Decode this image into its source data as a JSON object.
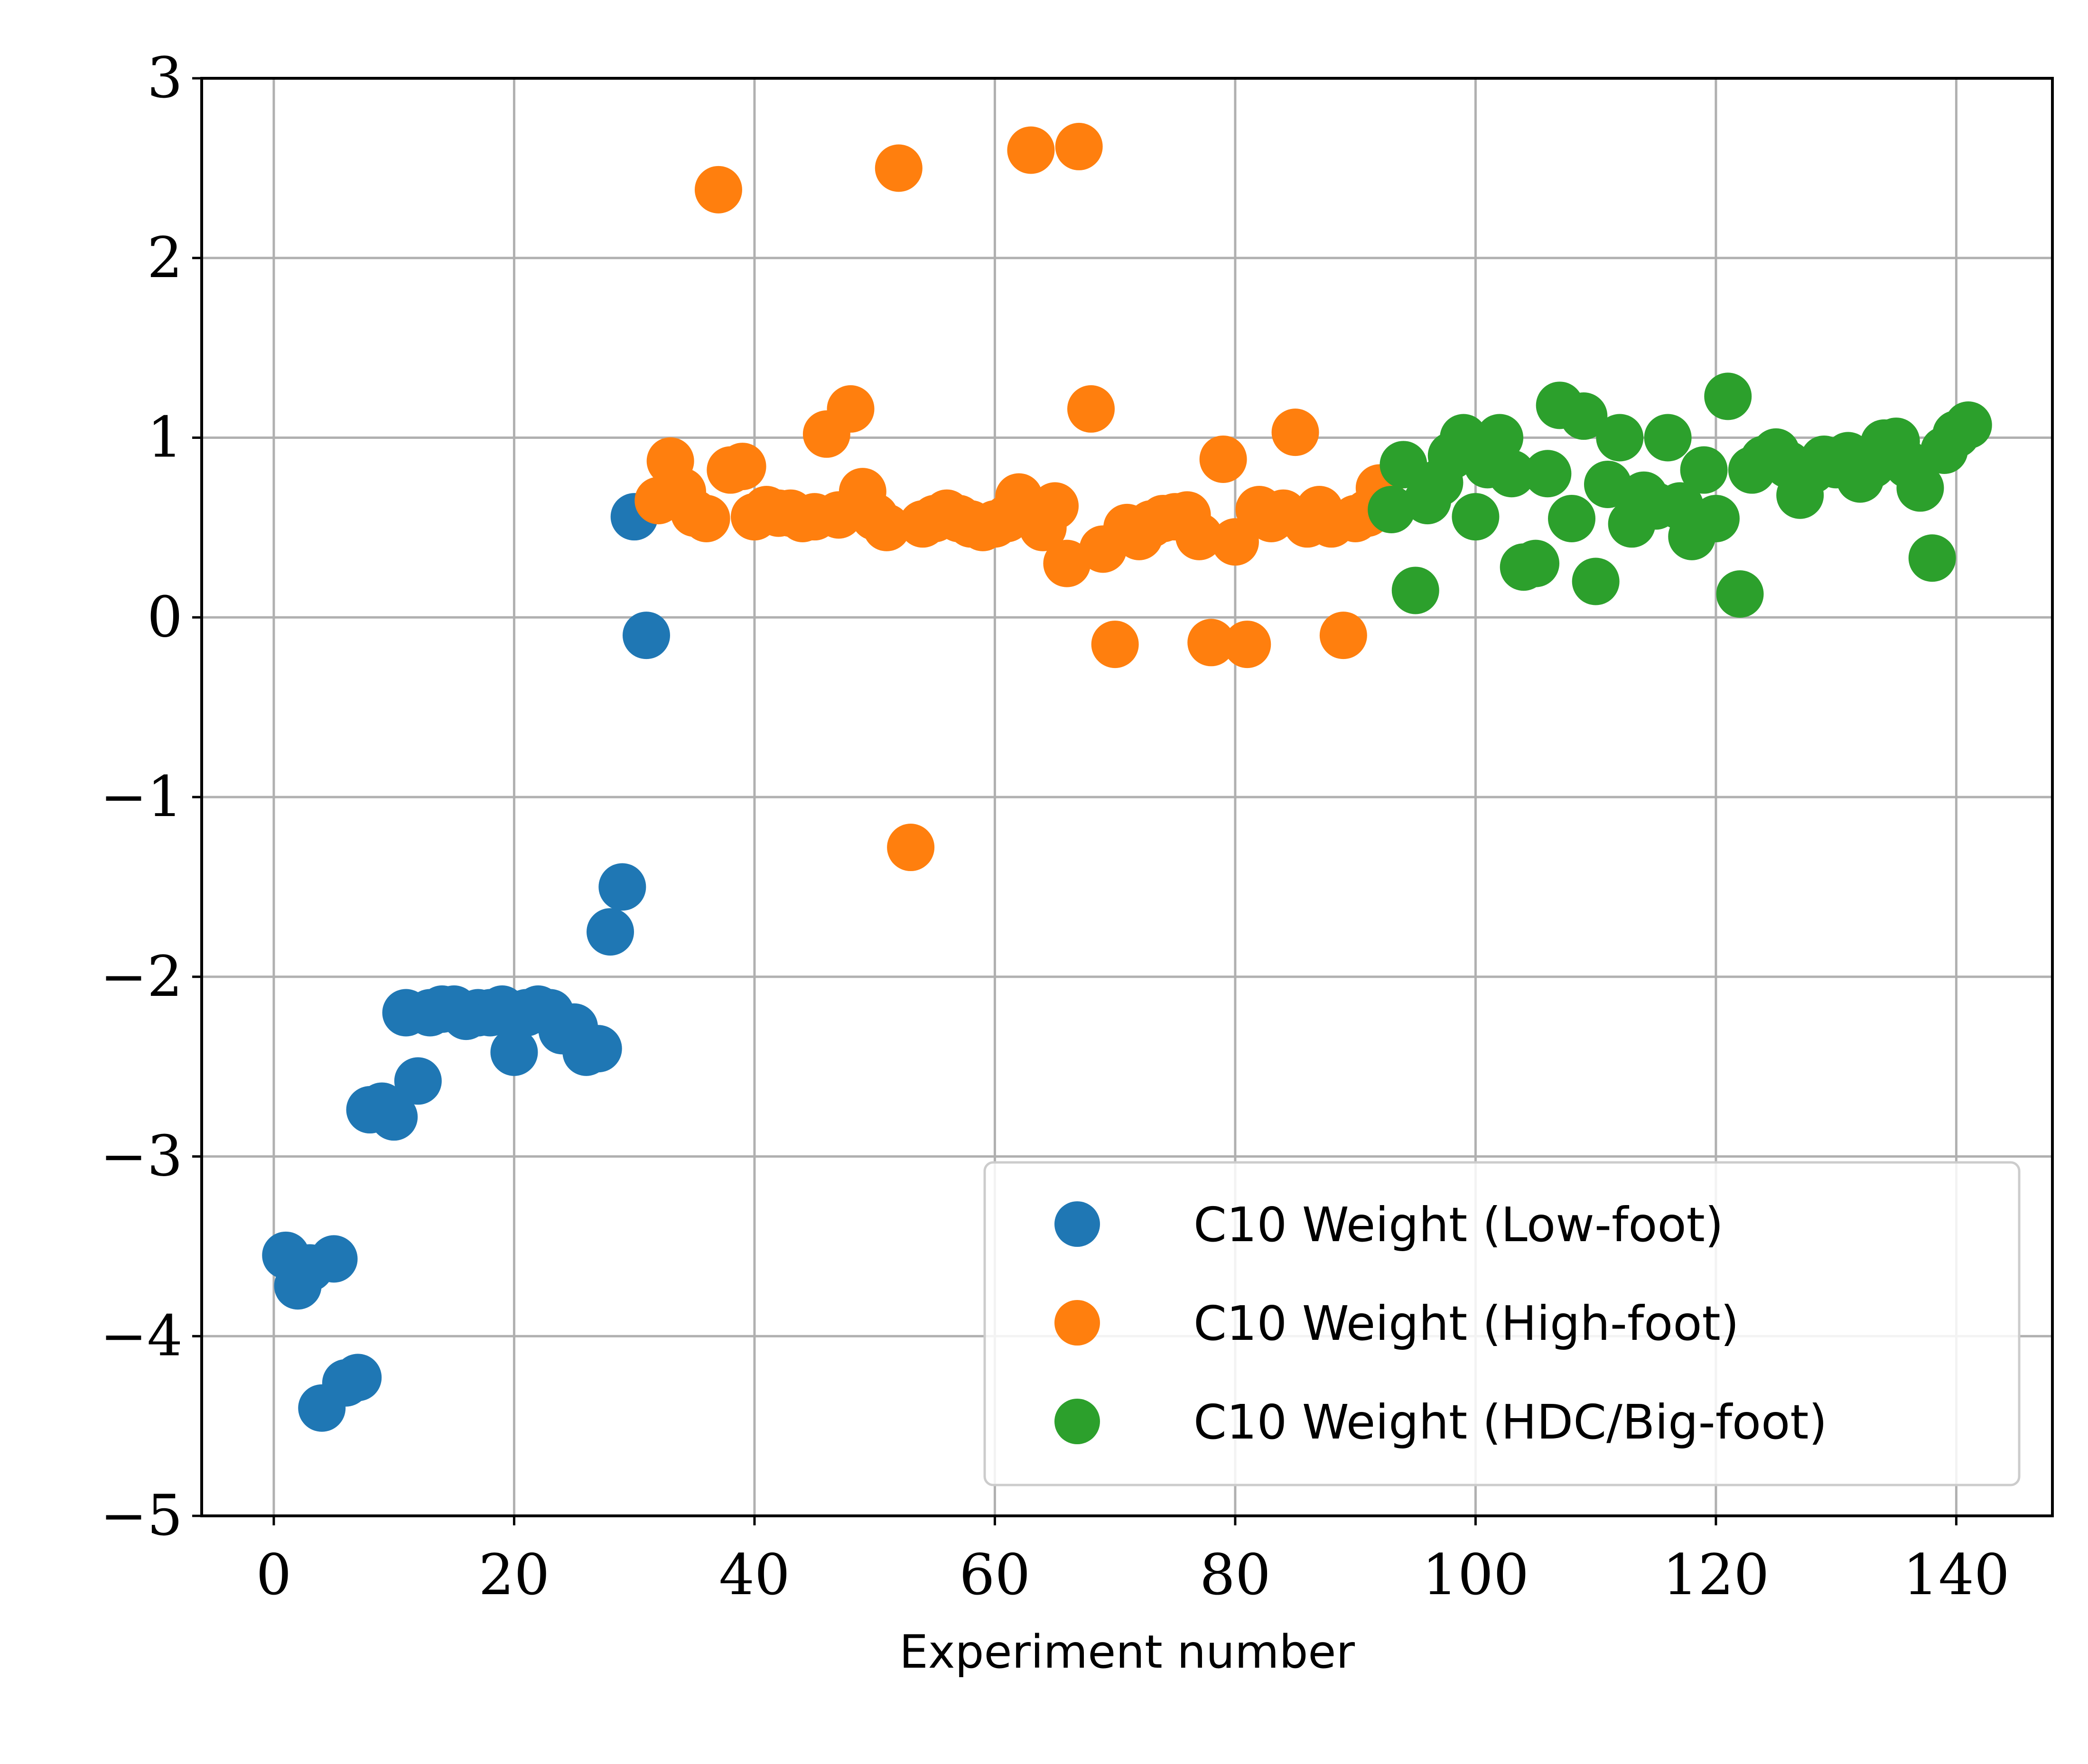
{
  "chart_data": {
    "type": "scatter",
    "title": "",
    "xlabel": "Experiment number",
    "ylabel": "",
    "xlim": [
      -6,
      148
    ],
    "ylim": [
      -5,
      3
    ],
    "xticks": [
      0,
      20,
      40,
      60,
      80,
      100,
      120,
      140
    ],
    "yticks": [
      -5,
      -4,
      -3,
      -2,
      -1,
      0,
      1,
      2,
      3
    ],
    "yticklabels": [
      "−5",
      "−4",
      "−3",
      "−2",
      "−1",
      "0",
      "1",
      "2",
      "3"
    ],
    "grid": true,
    "legend_position": "bottom-right",
    "series": [
      {
        "name": "C10 Weight (Low-foot)",
        "color": "#1f77b4",
        "points": [
          [
            1,
            -3.55
          ],
          [
            2,
            -3.72
          ],
          [
            3,
            -3.62
          ],
          [
            4,
            -4.4
          ],
          [
            5,
            -3.57
          ],
          [
            6,
            -4.26
          ],
          [
            7,
            -4.23
          ],
          [
            8,
            -2.74
          ],
          [
            9,
            -2.72
          ],
          [
            10,
            -2.78
          ],
          [
            11,
            -2.2
          ],
          [
            12,
            -2.58
          ],
          [
            13,
            -2.2
          ],
          [
            14,
            -2.18
          ],
          [
            15,
            -2.18
          ],
          [
            16,
            -2.22
          ],
          [
            17,
            -2.2
          ],
          [
            18,
            -2.2
          ],
          [
            19,
            -2.18
          ],
          [
            20,
            -2.42
          ],
          [
            21,
            -2.2
          ],
          [
            22,
            -2.18
          ],
          [
            23,
            -2.2
          ],
          [
            24,
            -2.3
          ],
          [
            25,
            -2.28
          ],
          [
            26,
            -2.42
          ],
          [
            27,
            -2.4
          ],
          [
            28,
            -1.75
          ],
          [
            29,
            -1.5
          ],
          [
            30,
            0.56
          ],
          [
            31,
            -0.1
          ]
        ]
      },
      {
        "name": "C10 Weight (High-foot)",
        "color": "#ff7f0e",
        "points": [
          [
            32,
            0.65
          ],
          [
            33,
            0.87
          ],
          [
            34,
            0.7
          ],
          [
            35,
            0.58
          ],
          [
            36,
            0.55
          ],
          [
            37,
            2.38
          ],
          [
            38,
            0.82
          ],
          [
            39,
            0.84
          ],
          [
            40,
            0.56
          ],
          [
            41,
            0.6
          ],
          [
            42,
            0.58
          ],
          [
            43,
            0.58
          ],
          [
            44,
            0.55
          ],
          [
            45,
            0.56
          ],
          [
            46,
            1.02
          ],
          [
            47,
            0.57
          ],
          [
            48,
            1.16
          ],
          [
            49,
            0.7
          ],
          [
            50,
            0.56
          ],
          [
            51,
            0.5
          ],
          [
            52,
            2.5
          ],
          [
            53,
            -1.28
          ],
          [
            54,
            0.52
          ],
          [
            55,
            0.55
          ],
          [
            56,
            0.58
          ],
          [
            57,
            0.55
          ],
          [
            58,
            0.52
          ],
          [
            59,
            0.5
          ],
          [
            60,
            0.52
          ],
          [
            61,
            0.55
          ],
          [
            62,
            0.67
          ],
          [
            63,
            2.6
          ],
          [
            64,
            0.5
          ],
          [
            65,
            0.62
          ],
          [
            66,
            0.3
          ],
          [
            67,
            2.62
          ],
          [
            68,
            1.16
          ],
          [
            69,
            0.38
          ],
          [
            70,
            -0.15
          ],
          [
            71,
            0.5
          ],
          [
            72,
            0.45
          ],
          [
            73,
            0.52
          ],
          [
            74,
            0.55
          ],
          [
            75,
            0.56
          ],
          [
            76,
            0.57
          ],
          [
            77,
            0.45
          ],
          [
            78,
            -0.14
          ],
          [
            79,
            0.88
          ],
          [
            80,
            0.42
          ],
          [
            81,
            -0.15
          ],
          [
            82,
            0.6
          ],
          [
            83,
            0.55
          ],
          [
            84,
            0.58
          ],
          [
            85,
            1.03
          ],
          [
            86,
            0.52
          ],
          [
            87,
            0.6
          ],
          [
            88,
            0.52
          ],
          [
            89,
            -0.1
          ],
          [
            90,
            0.55
          ],
          [
            91,
            0.58
          ],
          [
            92,
            0.72
          ]
        ]
      },
      {
        "name": "C10 Weight (HDC/Big-foot)",
        "color": "#2ca02c",
        "points": [
          [
            93,
            0.6
          ],
          [
            94,
            0.85
          ],
          [
            95,
            0.15
          ],
          [
            96,
            0.65
          ],
          [
            97,
            0.75
          ],
          [
            98,
            0.9
          ],
          [
            99,
            1.0
          ],
          [
            100,
            0.56
          ],
          [
            101,
            0.85
          ],
          [
            102,
            1.0
          ],
          [
            103,
            0.8
          ],
          [
            104,
            0.28
          ],
          [
            105,
            0.3
          ],
          [
            106,
            0.8
          ],
          [
            107,
            1.18
          ],
          [
            108,
            0.55
          ],
          [
            109,
            1.12
          ],
          [
            110,
            0.2
          ],
          [
            111,
            0.74
          ],
          [
            112,
            1.0
          ],
          [
            113,
            0.52
          ],
          [
            114,
            0.68
          ],
          [
            115,
            0.62
          ],
          [
            116,
            1.0
          ],
          [
            117,
            0.62
          ],
          [
            118,
            0.45
          ],
          [
            119,
            0.82
          ],
          [
            120,
            0.55
          ],
          [
            121,
            1.23
          ],
          [
            122,
            0.13
          ],
          [
            123,
            0.82
          ],
          [
            124,
            0.88
          ],
          [
            125,
            0.92
          ],
          [
            126,
            0.85
          ],
          [
            127,
            0.68
          ],
          [
            128,
            0.82
          ],
          [
            129,
            0.88
          ],
          [
            130,
            0.85
          ],
          [
            131,
            0.9
          ],
          [
            132,
            0.77
          ],
          [
            133,
            0.85
          ],
          [
            134,
            0.97
          ],
          [
            135,
            0.98
          ],
          [
            136,
            0.85
          ],
          [
            137,
            0.72
          ],
          [
            138,
            0.33
          ],
          [
            139,
            0.93
          ],
          [
            140,
            1.02
          ],
          [
            141,
            1.07
          ]
        ]
      }
    ]
  }
}
